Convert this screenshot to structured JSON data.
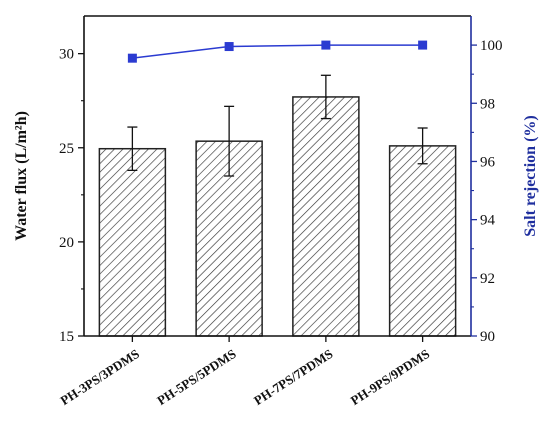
{
  "chart_data": {
    "type": "bar",
    "categories": [
      "PH-3PS/3PDMS",
      "PH-5PS/5PDMS",
      "PH-7PS/7PDMS",
      "PH-9PS/9PDMS"
    ],
    "series": [
      {
        "type": "bar",
        "axis": "left",
        "values": [
          24.95,
          25.35,
          27.7,
          25.1
        ],
        "error": [
          1.15,
          1.85,
          1.15,
          0.95
        ],
        "pattern": "diagonal-hatch"
      },
      {
        "type": "line",
        "axis": "right",
        "values": [
          99.55,
          99.95,
          100.0,
          100.0
        ],
        "marker": "square"
      }
    ],
    "ylabel_left": "Water flux (L/m²h)",
    "ylabel_right": "Salt rejection (%)",
    "ylim_left": [
      15,
      32
    ],
    "ylim_right": [
      90,
      101
    ],
    "yticks_left": [
      15,
      20,
      25,
      30
    ],
    "yticks_right": [
      90,
      92,
      94,
      96,
      98,
      100
    ],
    "colors": {
      "right_axis": "#1f2f9e",
      "line": "#2b3bd1",
      "bar_stroke": "#222222"
    },
    "grid": false
  }
}
